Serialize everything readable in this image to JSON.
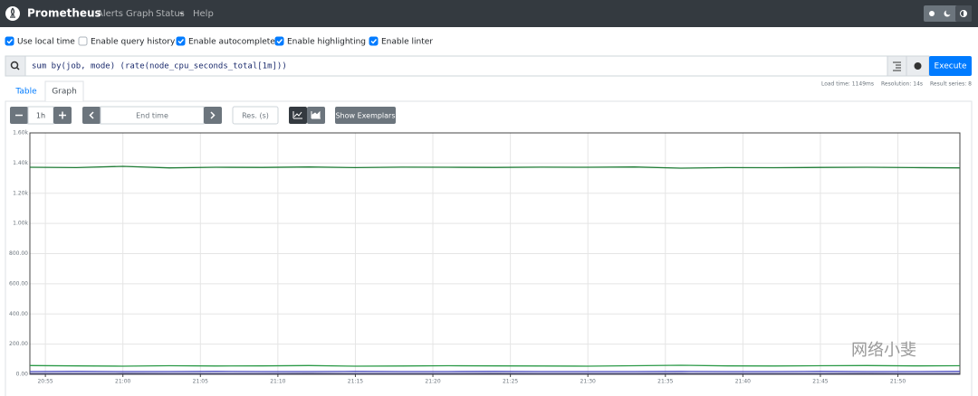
{
  "navbar": {
    "brand": "Prometheus",
    "links": [
      "Alerts",
      "Graph",
      "Status",
      "Help"
    ]
  },
  "options": [
    {
      "label": "Use local time",
      "checked": true
    },
    {
      "label": "Enable query history",
      "checked": false
    },
    {
      "label": "Enable autocomplete",
      "checked": true
    },
    {
      "label": "Enable highlighting",
      "checked": true
    },
    {
      "label": "Enable linter",
      "checked": true
    }
  ],
  "query": "sum by(job, mode) (rate(node_cpu_seconds_total[1m]))",
  "execute": "Execute",
  "stats": [
    "Load time: 1149ms",
    "Resolution: 14s",
    "Result series: 8"
  ],
  "tabs": [
    {
      "label": "Table",
      "active": false
    },
    {
      "label": "Graph",
      "active": true
    }
  ],
  "controls": {
    "range": "1h",
    "end_time": "End time",
    "resolution": "Res. (s)",
    "exemplars": "Show Exemplars"
  },
  "watermark": "网络小斐",
  "chart_data": {
    "type": "line",
    "x": [
      "20:54",
      "20:57",
      "21:00",
      "21:03",
      "21:06",
      "21:09",
      "21:12",
      "21:15",
      "21:18",
      "21:21",
      "21:24",
      "21:27",
      "21:30",
      "21:33",
      "21:36",
      "21:39",
      "21:42",
      "21:45",
      "21:48",
      "21:51",
      "21:54"
    ],
    "series": [
      {
        "color": "#1e7b34",
        "values": [
          1372,
          1370,
          1378,
          1368,
          1372,
          1371,
          1374,
          1370,
          1373,
          1372,
          1371,
          1373,
          1372,
          1374,
          1366,
          1370,
          1369,
          1371,
          1372,
          1370,
          1368
        ]
      },
      {
        "color": "#2c9a48",
        "values": [
          58,
          56,
          54,
          57,
          55,
          56,
          58,
          54,
          55,
          57,
          56,
          55,
          54,
          57,
          60,
          56,
          55,
          57,
          58,
          56,
          57
        ]
      },
      {
        "color": "#4848c0",
        "values": [
          18,
          19,
          18,
          18,
          19,
          18,
          18,
          19,
          18,
          18,
          19,
          18,
          18,
          18,
          19,
          18,
          18,
          19,
          18,
          18,
          19
        ]
      },
      {
        "color": "#3a3a6a",
        "values": [
          4,
          4,
          5,
          4,
          4,
          4,
          5,
          4,
          4,
          4,
          5,
          4,
          4,
          4,
          5,
          4,
          4,
          4,
          5,
          4,
          4
        ]
      }
    ],
    "xlim": [
      "20:54",
      "21:54"
    ],
    "xticks": [
      "20:55",
      "21:00",
      "21:05",
      "21:10",
      "21:15",
      "21:20",
      "21:25",
      "21:30",
      "21:35",
      "21:40",
      "21:45",
      "21:50"
    ],
    "ylim": [
      0,
      1600
    ],
    "yticks": [
      {
        "value": 0,
        "label": "0.00"
      },
      {
        "value": 200,
        "label": "200.00"
      },
      {
        "value": 400,
        "label": "400.00"
      },
      {
        "value": 600,
        "label": "600.00"
      },
      {
        "value": 800,
        "label": "800.00"
      },
      {
        "value": 1000,
        "label": "1.00k"
      },
      {
        "value": 1200,
        "label": "1.20k"
      },
      {
        "value": 1400,
        "label": "1.40k"
      },
      {
        "value": 1600,
        "label": "1.60k"
      }
    ],
    "grid": true
  }
}
